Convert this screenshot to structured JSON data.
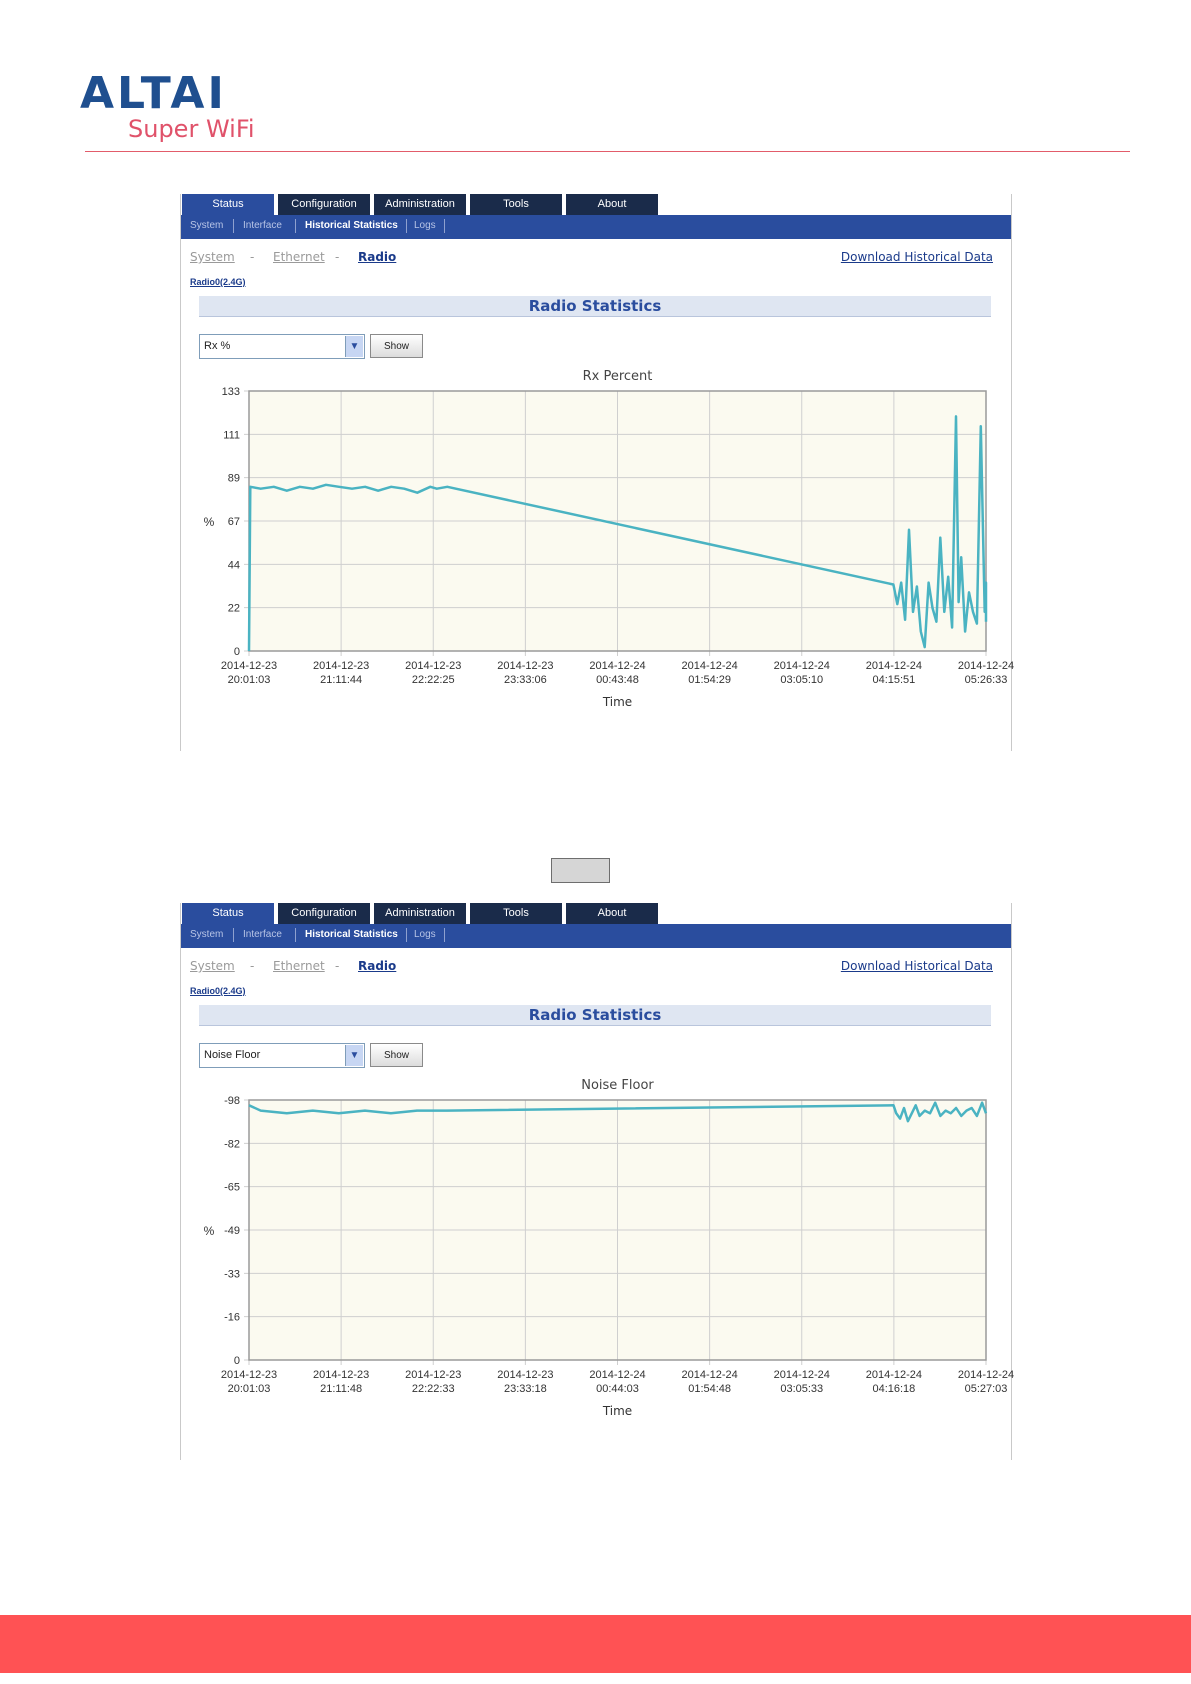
{
  "logo": {
    "main": "ALTAI",
    "sub": "Super WiFi"
  },
  "colors": {
    "brand": "#1f4f8f",
    "accent": "#e0526a",
    "nav_dark": "#1a2b4a",
    "nav_blue": "#2a4d9e",
    "series": "#4ab3c2",
    "plot_bg": "#fbfaf0",
    "footer": "#ff5254"
  },
  "panels": [
    {
      "tabs": [
        "Status",
        "Configuration",
        "Administration",
        "Tools",
        "About"
      ],
      "subnav": [
        "System",
        "Interface",
        "Historical Statistics",
        "Logs"
      ],
      "breadcrumb": {
        "system": "System",
        "sep1": "-",
        "ethernet": "Ethernet",
        "sep2": "-",
        "radio": "Radio"
      },
      "download": "Download Historical Data",
      "radio_link": "Radio0(2.4G)",
      "section_title": "Radio Statistics",
      "select_value": "Rx %",
      "show_label": "Show"
    },
    {
      "tabs": [
        "Status",
        "Configuration",
        "Administration",
        "Tools",
        "About"
      ],
      "subnav": [
        "System",
        "Interface",
        "Historical Statistics",
        "Logs"
      ],
      "breadcrumb": {
        "system": "System",
        "sep1": "-",
        "ethernet": "Ethernet",
        "sep2": "-",
        "radio": "Radio"
      },
      "download": "Download Historical Data",
      "radio_link": "Radio0(2.4G)",
      "section_title": "Radio Statistics",
      "select_value": "Noise Floor",
      "show_label": "Show"
    }
  ],
  "chart_data": [
    {
      "type": "line",
      "title": "Rx Percent",
      "xlabel": "Time",
      "ylabel": "%",
      "ylim": [
        0,
        133
      ],
      "y_ticks": [
        "0",
        "22",
        "44",
        "67",
        "89",
        "111",
        "133"
      ],
      "x_ticks": [
        [
          "2014-12-23",
          "20:01:03"
        ],
        [
          "2014-12-23",
          "21:11:44"
        ],
        [
          "2014-12-23",
          "22:22:25"
        ],
        [
          "2014-12-23",
          "23:33:06"
        ],
        [
          "2014-12-24",
          "00:43:48"
        ],
        [
          "2014-12-24",
          "01:54:29"
        ],
        [
          "2014-12-24",
          "03:05:10"
        ],
        [
          "2014-12-24",
          "04:15:51"
        ],
        [
          "2014-12-24",
          "05:26:33"
        ]
      ],
      "grid": true,
      "series": [
        {
          "x": [
            "20:01",
            "20:02",
            "20:10",
            "20:20",
            "20:30",
            "20:40",
            "20:50",
            "21:00",
            "21:10",
            "21:20",
            "21:30",
            "21:40",
            "21:50",
            "22:00",
            "22:10",
            "22:20",
            "22:25",
            "22:33",
            "04:15",
            "04:18",
            "04:21",
            "04:24",
            "04:27",
            "04:30",
            "04:33",
            "04:36",
            "04:39",
            "04:42",
            "04:45",
            "04:48",
            "04:51",
            "04:54",
            "04:57",
            "05:00",
            "05:03",
            "05:05",
            "05:07",
            "05:10",
            "05:13",
            "05:16",
            "05:19",
            "05:22",
            "05:25",
            "05:28",
            "05:30"
          ],
          "values": [
            0,
            84,
            83,
            84,
            82,
            84,
            83,
            85,
            84,
            83,
            84,
            82,
            84,
            83,
            81,
            84,
            83,
            84,
            34,
            24,
            35,
            16,
            62,
            20,
            33,
            10,
            2,
            35,
            22,
            15,
            58,
            20,
            38,
            12,
            120,
            25,
            48,
            10,
            30,
            20,
            14,
            115,
            20,
            35,
            15
          ]
        }
      ]
    },
    {
      "type": "line",
      "title": "Noise Floor",
      "xlabel": "Time",
      "ylabel": "%",
      "ylim": [
        0,
        -98
      ],
      "y_ticks": [
        "0",
        "-16",
        "-33",
        "-49",
        "-65",
        "-82",
        "-98"
      ],
      "x_ticks": [
        [
          "2014-12-23",
          "20:01:03"
        ],
        [
          "2014-12-23",
          "21:11:48"
        ],
        [
          "2014-12-23",
          "22:22:33"
        ],
        [
          "2014-12-23",
          "23:33:18"
        ],
        [
          "2014-12-24",
          "00:44:03"
        ],
        [
          "2014-12-24",
          "01:54:48"
        ],
        [
          "2014-12-24",
          "03:05:33"
        ],
        [
          "2014-12-24",
          "04:16:18"
        ],
        [
          "2014-12-24",
          "05:27:03"
        ]
      ],
      "grid": true,
      "series": [
        {
          "x": [
            "20:01",
            "20:10",
            "20:30",
            "20:50",
            "21:10",
            "21:30",
            "21:50",
            "22:10",
            "22:33",
            "04:16",
            "04:18",
            "04:21",
            "04:24",
            "04:27",
            "04:30",
            "04:33",
            "04:36",
            "04:40",
            "04:44",
            "04:48",
            "04:52",
            "04:56",
            "05:00",
            "05:04",
            "05:08",
            "05:12",
            "05:16",
            "05:20",
            "05:24",
            "05:28"
          ],
          "values": [
            -96,
            -94,
            -93,
            -94,
            -93,
            -94,
            -93,
            -94,
            -94,
            -96,
            -93,
            -91,
            -95,
            -90,
            -93,
            -96,
            -92,
            -94,
            -93,
            -97,
            -92,
            -94,
            -93,
            -95,
            -92,
            -94,
            -95,
            -92,
            -97,
            -93
          ]
        }
      ]
    }
  ]
}
